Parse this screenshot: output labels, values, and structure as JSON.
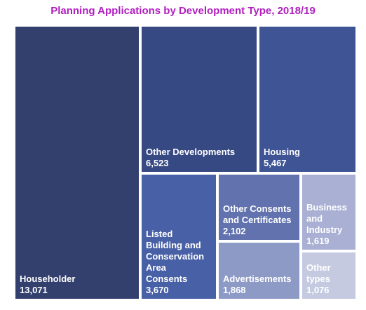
{
  "chart_data": {
    "type": "treemap",
    "title": "Planning Applications by Development Type, 2018/19",
    "items": [
      {
        "label": "Householder",
        "value": 13071,
        "value_text": "13,071",
        "color": "#33406e"
      },
      {
        "label": "Other Developments",
        "value": 6523,
        "value_text": "6,523",
        "color": "#374983"
      },
      {
        "label": "Housing",
        "value": 5467,
        "value_text": "5,467",
        "color": "#3e5494"
      },
      {
        "label": "Listed Building and Conservation Area Consents",
        "value": 3670,
        "value_text": "3,670",
        "color": "#4860a6"
      },
      {
        "label": "Other Consents and Certificates",
        "value": 2102,
        "value_text": "2,102",
        "color": "#6172ae"
      },
      {
        "label": "Advertisements",
        "value": 1868,
        "value_text": "1,868",
        "color": "#8d9ac6"
      },
      {
        "label": "Business and Industry",
        "value": 1619,
        "value_text": "1,619",
        "color": "#a9b0d3"
      },
      {
        "label": "Other types",
        "value": 1076,
        "value_text": "1,076",
        "color": "#c5cae1"
      }
    ]
  }
}
